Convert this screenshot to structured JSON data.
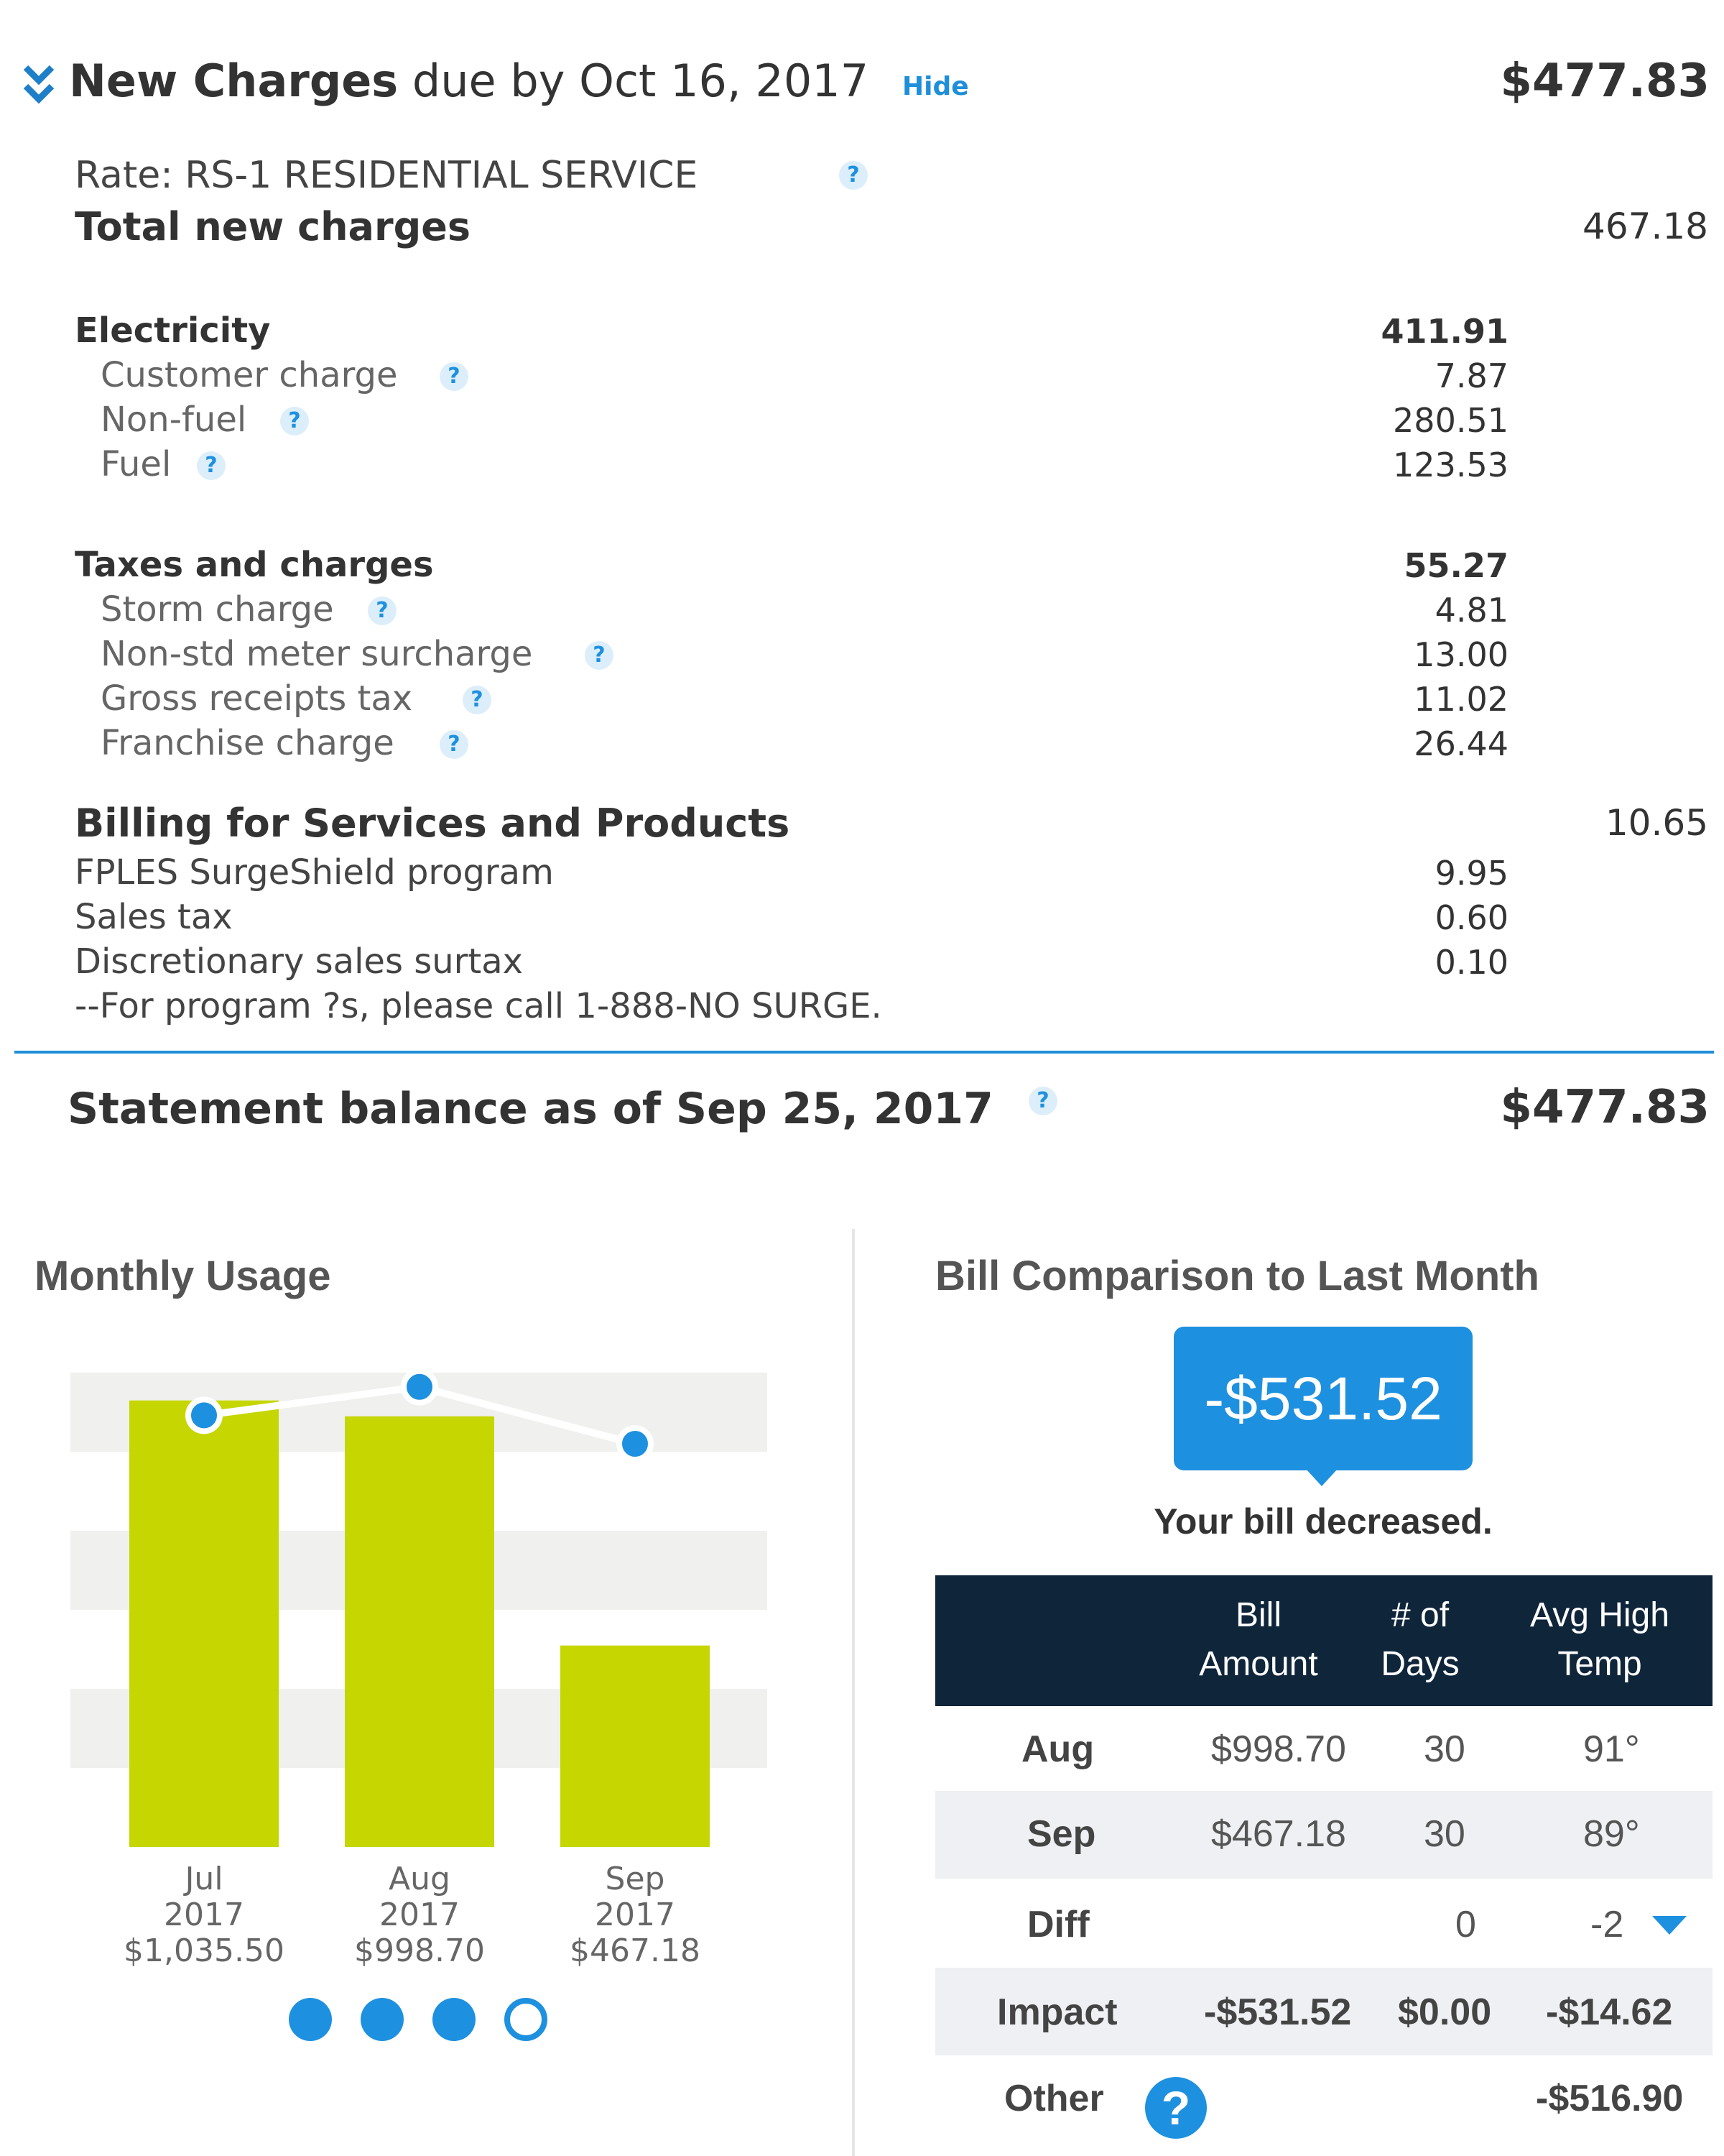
{
  "header": {
    "title_bold": "New Charges",
    "title_rest": " due by Oct 16, 2017",
    "hide_label": "Hide",
    "total": "$477.83"
  },
  "rate": "Rate: RS-1 RESIDENTIAL SERVICE",
  "total_new_charges": {
    "label": "Total new charges",
    "value": "467.18"
  },
  "electricity": {
    "label": "Electricity",
    "value": "411.91",
    "items": [
      {
        "label": "Customer charge",
        "value": "7.87"
      },
      {
        "label": "Non-fuel",
        "value": "280.51"
      },
      {
        "label": "Fuel",
        "value": "123.53"
      }
    ]
  },
  "taxes": {
    "label": "Taxes and charges",
    "value": "55.27",
    "items": [
      {
        "label": "Storm charge",
        "value": "4.81"
      },
      {
        "label": "Non-std meter surcharge",
        "value": "13.00"
      },
      {
        "label": "Gross receipts tax",
        "value": "11.02"
      },
      {
        "label": "Franchise charge",
        "value": "26.44"
      }
    ]
  },
  "services": {
    "label": "Billing for Services and Products",
    "value": "10.65",
    "items": [
      {
        "label": "FPLES SurgeShield program",
        "value": "9.95"
      },
      {
        "label": "Sales tax",
        "value": "0.60"
      },
      {
        "label": "Discretionary sales surtax",
        "value": "0.10"
      }
    ],
    "note": "--For program ?s, please call 1-888-NO SURGE."
  },
  "statement": {
    "label": "Statement balance as of Sep 25, 2017",
    "value": "$477.83"
  },
  "usage": {
    "title": "Monthly Usage",
    "page_dots": 4,
    "active_dot": 3
  },
  "chart_data": {
    "type": "bar",
    "categories": [
      "Jul 2017",
      "Aug 2017",
      "Sep 2017"
    ],
    "tick_lines": [
      [
        "Jul",
        "2017",
        "$1,035.50"
      ],
      [
        "Aug",
        "2017",
        "$998.70"
      ],
      [
        "Sep",
        "2017",
        "$467.18"
      ]
    ],
    "values": [
      1035.5,
      998.7,
      467.18
    ],
    "line_values": [
      0.91,
      0.97,
      0.85
    ],
    "bar_color": "#c5d600",
    "line_color": "#1e90e0",
    "ylim": [
      0,
      1100
    ],
    "grid": "alternating bands"
  },
  "comparison": {
    "title": "Bill Comparison to Last Month",
    "change": "-$531.52",
    "message": "Your bill decreased.",
    "columns": [
      [
        "Bill",
        "Amount"
      ],
      [
        "# of",
        "Days"
      ],
      [
        "Avg High",
        "Temp"
      ]
    ],
    "rows": [
      {
        "label": "Aug",
        "cells": [
          "$998.70",
          "30",
          "91°"
        ]
      },
      {
        "label": "Sep",
        "cells": [
          "$467.18",
          "30",
          "89°"
        ]
      },
      {
        "label": "Diff",
        "cells": [
          "",
          "0",
          "-2"
        ]
      },
      {
        "label": "Impact",
        "cells": [
          "-$531.52",
          "$0.00",
          "-$14.62"
        ]
      },
      {
        "label": "Other",
        "cells": [
          "",
          "",
          "-$516.90"
        ]
      }
    ],
    "help_icon": "?"
  },
  "help_glyph": "?",
  "colors": {
    "accent": "#1e90e0",
    "header_bg": "#0f253a",
    "bar": "#c5d600"
  }
}
